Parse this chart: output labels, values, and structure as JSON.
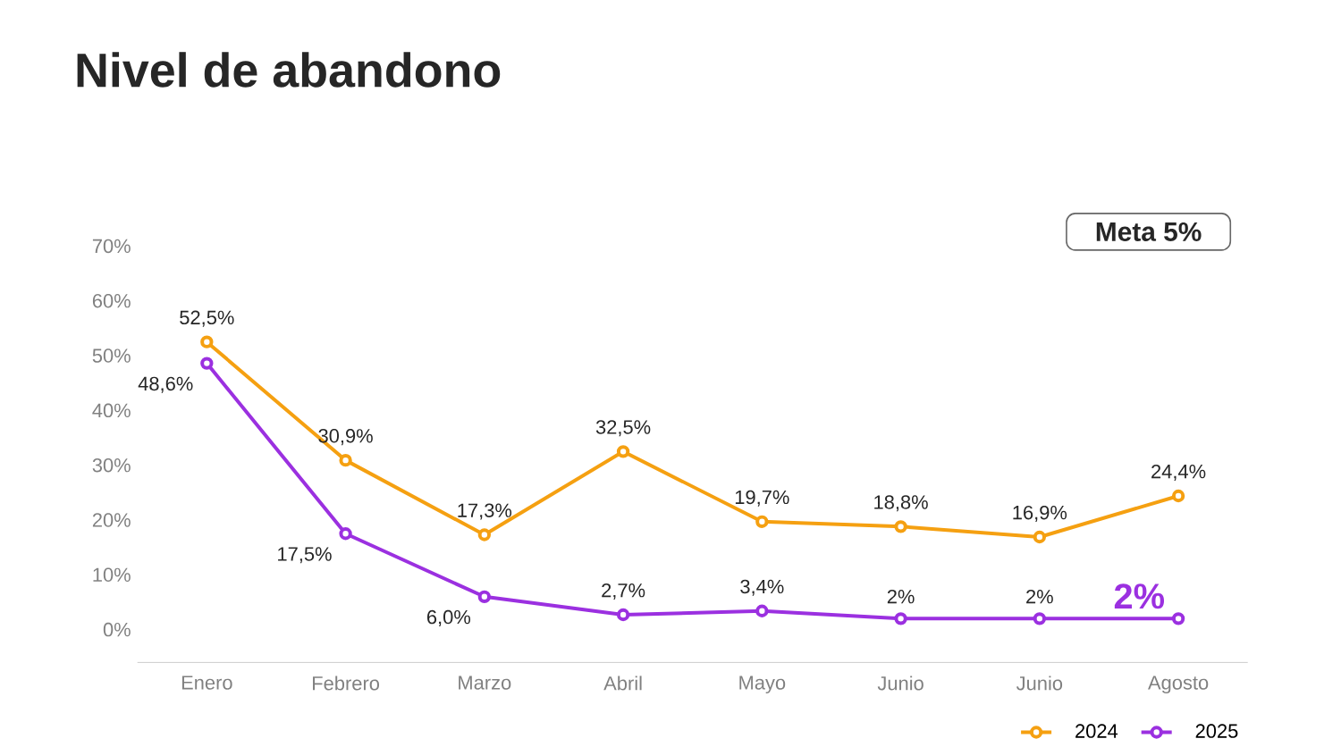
{
  "chart_data": {
    "type": "line",
    "title": "Nivel de abandono",
    "categories": [
      "Enero",
      "Febrero",
      "Marzo",
      "Abril",
      "Mayo",
      "Junio",
      "Junio",
      "Agosto"
    ],
    "series": [
      {
        "name": "2024",
        "color": "#f5a011",
        "values": [
          52.5,
          30.9,
          17.3,
          32.5,
          19.7,
          18.8,
          16.9,
          24.4
        ],
        "value_labels": [
          "52,5%",
          "30,9%",
          "17,3%",
          "32,5%",
          "19,7%",
          "18,8%",
          "16,9%",
          "24,4%"
        ]
      },
      {
        "name": "2025",
        "color": "#9b30e0",
        "values": [
          48.6,
          17.5,
          6.0,
          2.7,
          3.4,
          2,
          2,
          2
        ],
        "value_labels": [
          "48,6%",
          "17,5%",
          "6,0%",
          "2,7%",
          "3,4%",
          "2%",
          "2%",
          "2%"
        ]
      }
    ],
    "ylim": [
      -6,
      70
    ],
    "yticks": [
      {
        "value": 0,
        "label": "0%"
      },
      {
        "value": 10,
        "label": "10%"
      },
      {
        "value": 20,
        "label": "20%"
      },
      {
        "value": 30,
        "label": "30%"
      },
      {
        "value": 40,
        "label": "40%"
      },
      {
        "value": 50,
        "label": "50%"
      },
      {
        "value": 60,
        "label": "60%"
      },
      {
        "value": 70,
        "label": "70%"
      }
    ],
    "annotations": [
      "Meta 5%"
    ],
    "legend": "bottom right",
    "marker": "circle",
    "line_style": "solid",
    "grid": false
  }
}
